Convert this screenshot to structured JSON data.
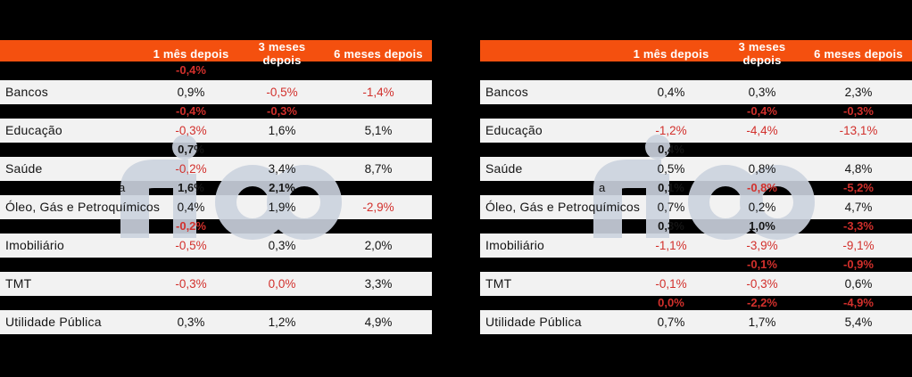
{
  "page": {
    "background": "#000000"
  },
  "brand": {
    "watermark_text": "rico",
    "header_bg": "#f4500f",
    "negative_color": "#d2302c",
    "positive_color": "#141414",
    "row_bg": "#f2f2f2",
    "watermark_color": "#ccd3df"
  },
  "chart_data": [
    {
      "type": "table",
      "name": "sector-performance-table-left",
      "header": {
        "col1": "1 mês depois",
        "col2": "3 meses depois",
        "col3": "6 meses depois"
      },
      "rows": [
        {
          "type": "gap",
          "label": "",
          "values": [
            "-0,4%",
            "",
            ""
          ]
        },
        {
          "type": "sector",
          "label": "Bancos",
          "values": [
            "0,9%",
            "-0,5%",
            "-1,4%"
          ]
        },
        {
          "type": "gap",
          "label": "",
          "values": [
            "-0,4%",
            "-0,3%",
            ""
          ]
        },
        {
          "type": "sector",
          "label": "Educação",
          "values": [
            "-0,3%",
            "1,6%",
            "5,1%"
          ]
        },
        {
          "type": "gap",
          "label": "",
          "values": [
            "0,7%",
            "",
            ""
          ]
        },
        {
          "type": "sector",
          "label": "Saúde",
          "values": [
            "-0,2%",
            "3,4%",
            "8,7%"
          ]
        },
        {
          "type": "gap",
          "label": "a",
          "values": [
            "1,6%",
            "2,1%",
            ""
          ]
        },
        {
          "type": "sector",
          "label": "Óleo, Gás e Petroquímicos",
          "values": [
            "0,4%",
            "1,9%",
            "-2,9%"
          ]
        },
        {
          "type": "gap",
          "label": "",
          "values": [
            "-0,2%",
            "",
            ""
          ]
        },
        {
          "type": "sector",
          "label": "Imobiliário",
          "values": [
            "-0,5%",
            "0,3%",
            "2,0%"
          ]
        },
        {
          "type": "gap",
          "label": "",
          "values": [
            "",
            "",
            ""
          ]
        },
        {
          "type": "sector",
          "label": "TMT",
          "values": [
            "-0,3%",
            "0,0%",
            "3,3%"
          ]
        },
        {
          "type": "gap",
          "label": "",
          "values": [
            "",
            "",
            ""
          ]
        },
        {
          "type": "sector",
          "label": "Utilidade Pública",
          "values": [
            "0,3%",
            "1,2%",
            "4,9%"
          ]
        }
      ]
    },
    {
      "type": "table",
      "name": "sector-performance-table-right",
      "header": {
        "col1": "1 mês depois",
        "col2": "3 meses depois",
        "col3": "6 meses depois"
      },
      "rows": [
        {
          "type": "gap",
          "label": "",
          "values": [
            "",
            "",
            ""
          ]
        },
        {
          "type": "sector",
          "label": "Bancos",
          "values": [
            "0,4%",
            "0,3%",
            "2,3%"
          ]
        },
        {
          "type": "gap",
          "label": "",
          "values": [
            "",
            "-0,4%",
            "-0,3%"
          ]
        },
        {
          "type": "sector",
          "label": "Educação",
          "values": [
            "-1,2%",
            "-4,4%",
            "-13,1%"
          ]
        },
        {
          "type": "gap",
          "label": "",
          "values": [
            "0,4%",
            "",
            ""
          ]
        },
        {
          "type": "sector",
          "label": "Saúde",
          "values": [
            "0,5%",
            "0,8%",
            "4,8%"
          ]
        },
        {
          "type": "gap",
          "label": "a",
          "values": [
            "0,1%",
            "-0,8%",
            "-5,2%"
          ]
        },
        {
          "type": "sector",
          "label": "Óleo, Gás e Petroquímicos",
          "values": [
            "0,7%",
            "0,2%",
            "4,7%"
          ]
        },
        {
          "type": "gap",
          "label": "",
          "values": [
            "0,3%",
            "1,0%",
            "-3,3%"
          ]
        },
        {
          "type": "sector",
          "label": "Imobiliário",
          "values": [
            "-1,1%",
            "-3,9%",
            "-9,1%"
          ]
        },
        {
          "type": "gap",
          "label": "",
          "values": [
            "",
            "-0,1%",
            "-0,9%"
          ]
        },
        {
          "type": "sector",
          "label": "TMT",
          "values": [
            "-0,1%",
            "-0,3%",
            "0,6%"
          ]
        },
        {
          "type": "gap",
          "label": "",
          "values": [
            "0,0%",
            "-2,2%",
            "-4,9%"
          ]
        },
        {
          "type": "sector",
          "label": "Utilidade Pública",
          "values": [
            "0,7%",
            "1,7%",
            "5,4%"
          ]
        }
      ]
    }
  ]
}
